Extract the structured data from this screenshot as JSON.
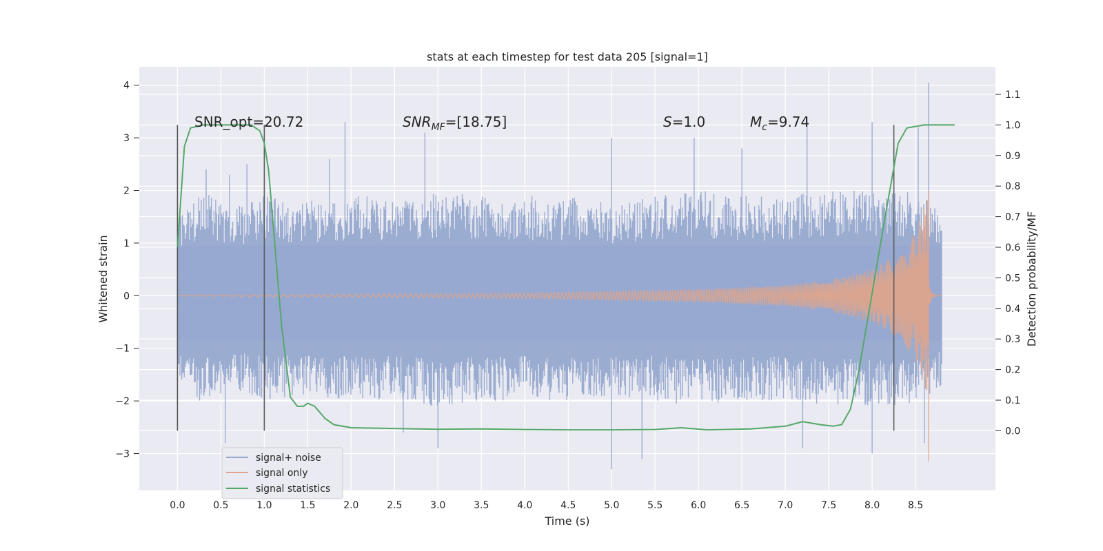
{
  "chart_data": {
    "type": "line",
    "title": "stats at each timestep for test data 205 [signal=1]",
    "xlabel": "Time (s)",
    "ylabel": "Whitened strain",
    "y2label": "Detection probability/MF",
    "xlim": [
      -0.44,
      9.42
    ],
    "ylim": [
      -3.7,
      4.35
    ],
    "y2lim": [
      -0.195,
      1.19
    ],
    "x_ticks": [
      "0.0",
      "0.5",
      "1.0",
      "1.5",
      "2.0",
      "2.5",
      "3.0",
      "3.5",
      "4.0",
      "4.5",
      "5.0",
      "5.5",
      "6.0",
      "6.5",
      "7.0",
      "7.5",
      "8.0",
      "8.5"
    ],
    "y_ticks": [
      "4",
      "3",
      "2",
      "1",
      "0",
      "−1",
      "−2",
      "−3"
    ],
    "y2_ticks": [
      "1.1",
      "1.0",
      "0.9",
      "0.8",
      "0.7",
      "0.6",
      "0.5",
      "0.4",
      "0.3",
      "0.2",
      "0.1",
      "0.0"
    ],
    "annotations": {
      "snr_opt": "SNR_opt=20.72",
      "snr_mf_pre": "SNR",
      "snr_mf_sub": "MF",
      "snr_mf_post": "=[18.75]",
      "s_sym": "S",
      "s_val": "=1.0",
      "mc_sym": "M",
      "mc_sub": "c",
      "mc_val": "=9.74"
    },
    "vertical_lines": [
      0.0,
      1.0,
      8.25
    ],
    "noise": {
      "t_start": 0.0,
      "t_end": 8.8,
      "envelope_ymax": [
        [
          0.0,
          1.5
        ],
        [
          0.3,
          2.0
        ],
        [
          0.6,
          1.7
        ],
        [
          1.0,
          1.9
        ],
        [
          1.5,
          1.8
        ],
        [
          2.0,
          1.9
        ],
        [
          2.5,
          1.9
        ],
        [
          3.0,
          2.0
        ],
        [
          3.5,
          1.9
        ],
        [
          4.0,
          1.9
        ],
        [
          4.5,
          1.9
        ],
        [
          5.0,
          1.8
        ],
        [
          5.5,
          1.9
        ],
        [
          6.0,
          2.0
        ],
        [
          6.5,
          1.9
        ],
        [
          7.0,
          1.9
        ],
        [
          7.5,
          2.0
        ],
        [
          8.0,
          2.0
        ],
        [
          8.5,
          2.0
        ],
        [
          8.8,
          1.6
        ]
      ],
      "spikes": [
        [
          0.33,
          2.4
        ],
        [
          0.6,
          2.3
        ],
        [
          0.8,
          2.5
        ],
        [
          1.75,
          2.6
        ],
        [
          1.93,
          3.3
        ],
        [
          2.85,
          3.1
        ],
        [
          5.0,
          3.0
        ],
        [
          5.95,
          3.0
        ],
        [
          6.5,
          2.8
        ],
        [
          7.25,
          3.4
        ],
        [
          8.0,
          3.3
        ],
        [
          8.25,
          2.9
        ],
        [
          8.53,
          3.2
        ],
        [
          8.65,
          4.05
        ],
        [
          5.0,
          -3.3
        ],
        [
          5.35,
          -3.1
        ],
        [
          3.0,
          -2.9
        ],
        [
          7.2,
          -2.9
        ],
        [
          8.6,
          -2.8
        ],
        [
          0.55,
          -2.8
        ],
        [
          2.6,
          -2.6
        ],
        [
          8.0,
          -3.0
        ]
      ]
    },
    "chirp": {
      "t_merge": 8.65,
      "t_end": 8.8,
      "amplitude_points": [
        [
          0.0,
          0.005
        ],
        [
          4.0,
          0.05
        ],
        [
          5.0,
          0.08
        ],
        [
          6.0,
          0.12
        ],
        [
          7.0,
          0.2
        ],
        [
          7.5,
          0.3
        ],
        [
          8.0,
          0.5
        ],
        [
          8.3,
          0.8
        ],
        [
          8.5,
          1.2
        ],
        [
          8.6,
          1.7
        ],
        [
          8.65,
          2.1
        ]
      ],
      "min_value": -3.15
    },
    "statistics": [
      [
        0.0,
        0.6
      ],
      [
        0.08,
        0.93
      ],
      [
        0.15,
        0.99
      ],
      [
        0.3,
        1.0
      ],
      [
        0.85,
        1.0
      ],
      [
        0.95,
        0.98
      ],
      [
        1.0,
        0.94
      ],
      [
        1.05,
        0.85
      ],
      [
        1.1,
        0.68
      ],
      [
        1.2,
        0.34
      ],
      [
        1.3,
        0.11
      ],
      [
        1.38,
        0.08
      ],
      [
        1.45,
        0.08
      ],
      [
        1.5,
        0.09
      ],
      [
        1.58,
        0.08
      ],
      [
        1.7,
        0.04
      ],
      [
        1.8,
        0.02
      ],
      [
        2.0,
        0.01
      ],
      [
        3.0,
        0.005
      ],
      [
        3.5,
        0.006
      ],
      [
        4.0,
        0.004
      ],
      [
        4.5,
        0.003
      ],
      [
        5.0,
        0.003
      ],
      [
        5.5,
        0.004
      ],
      [
        5.8,
        0.01
      ],
      [
        6.1,
        0.003
      ],
      [
        6.6,
        0.006
      ],
      [
        7.0,
        0.015
      ],
      [
        7.2,
        0.03
      ],
      [
        7.4,
        0.02
      ],
      [
        7.55,
        0.015
      ],
      [
        7.65,
        0.02
      ],
      [
        7.75,
        0.07
      ],
      [
        7.85,
        0.2
      ],
      [
        8.0,
        0.45
      ],
      [
        8.15,
        0.7
      ],
      [
        8.25,
        0.86
      ],
      [
        8.3,
        0.94
      ],
      [
        8.4,
        0.99
      ],
      [
        8.6,
        1.0
      ],
      [
        8.95,
        1.0
      ]
    ],
    "series": [
      {
        "name": "signal+ noise",
        "color": "#97a9cf"
      },
      {
        "name": "signal only",
        "color": "#e0a48a"
      },
      {
        "name": "signal statistics",
        "color": "#55a868"
      }
    ],
    "colors": {
      "plot_background": "#eaeaf2",
      "grid": "#ffffff",
      "vline": "#595959",
      "text": "#262626"
    },
    "legend_position": "lower-left"
  }
}
